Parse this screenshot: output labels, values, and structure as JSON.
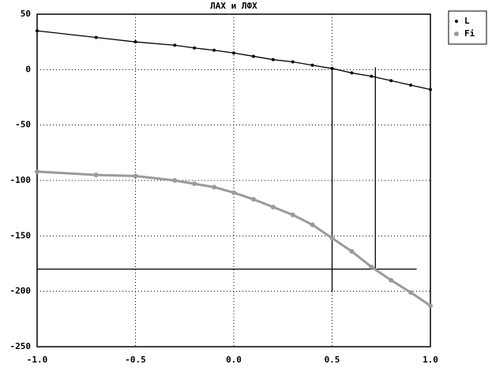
{
  "chart_data": {
    "type": "line",
    "title": "ЛАХ и ЛФХ",
    "x": [
      -1.0,
      -0.7,
      -0.5,
      -0.3,
      -0.2,
      -0.1,
      0.0,
      0.1,
      0.2,
      0.3,
      0.4,
      0.5,
      0.6,
      0.7,
      0.8,
      0.9,
      1.0
    ],
    "series": [
      {
        "name": "L",
        "color": "#000000",
        "values": [
          35,
          29,
          25,
          22,
          19.5,
          17.5,
          15,
          12,
          9,
          7,
          4,
          1,
          -3,
          -6,
          -10,
          -14,
          -18
        ]
      },
      {
        "name": "Fi",
        "color": "#9a9a9a",
        "values": [
          -92,
          -95,
          -96,
          -100,
          -103,
          -106,
          -111,
          -117,
          -124,
          -131,
          -140,
          -152,
          -164,
          -178,
          -190,
          -201,
          -213
        ]
      }
    ],
    "xlim": [
      -1.0,
      1.0
    ],
    "xticks": [
      {
        "value": -1.0,
        "label": "-1.0"
      },
      -0.5,
      {
        "value": 0.0,
        "label": "0.0"
      },
      0.5,
      {
        "value": 1.0,
        "label": "1.0"
      }
    ],
    "ylim": [
      -250,
      50
    ],
    "yticks": [
      50,
      0,
      -50,
      -100,
      -150,
      -200,
      -250
    ],
    "vlines": [
      0.5,
      0.72
    ],
    "hlines": [
      -180
    ],
    "grid": true,
    "legend": "outside-right"
  }
}
